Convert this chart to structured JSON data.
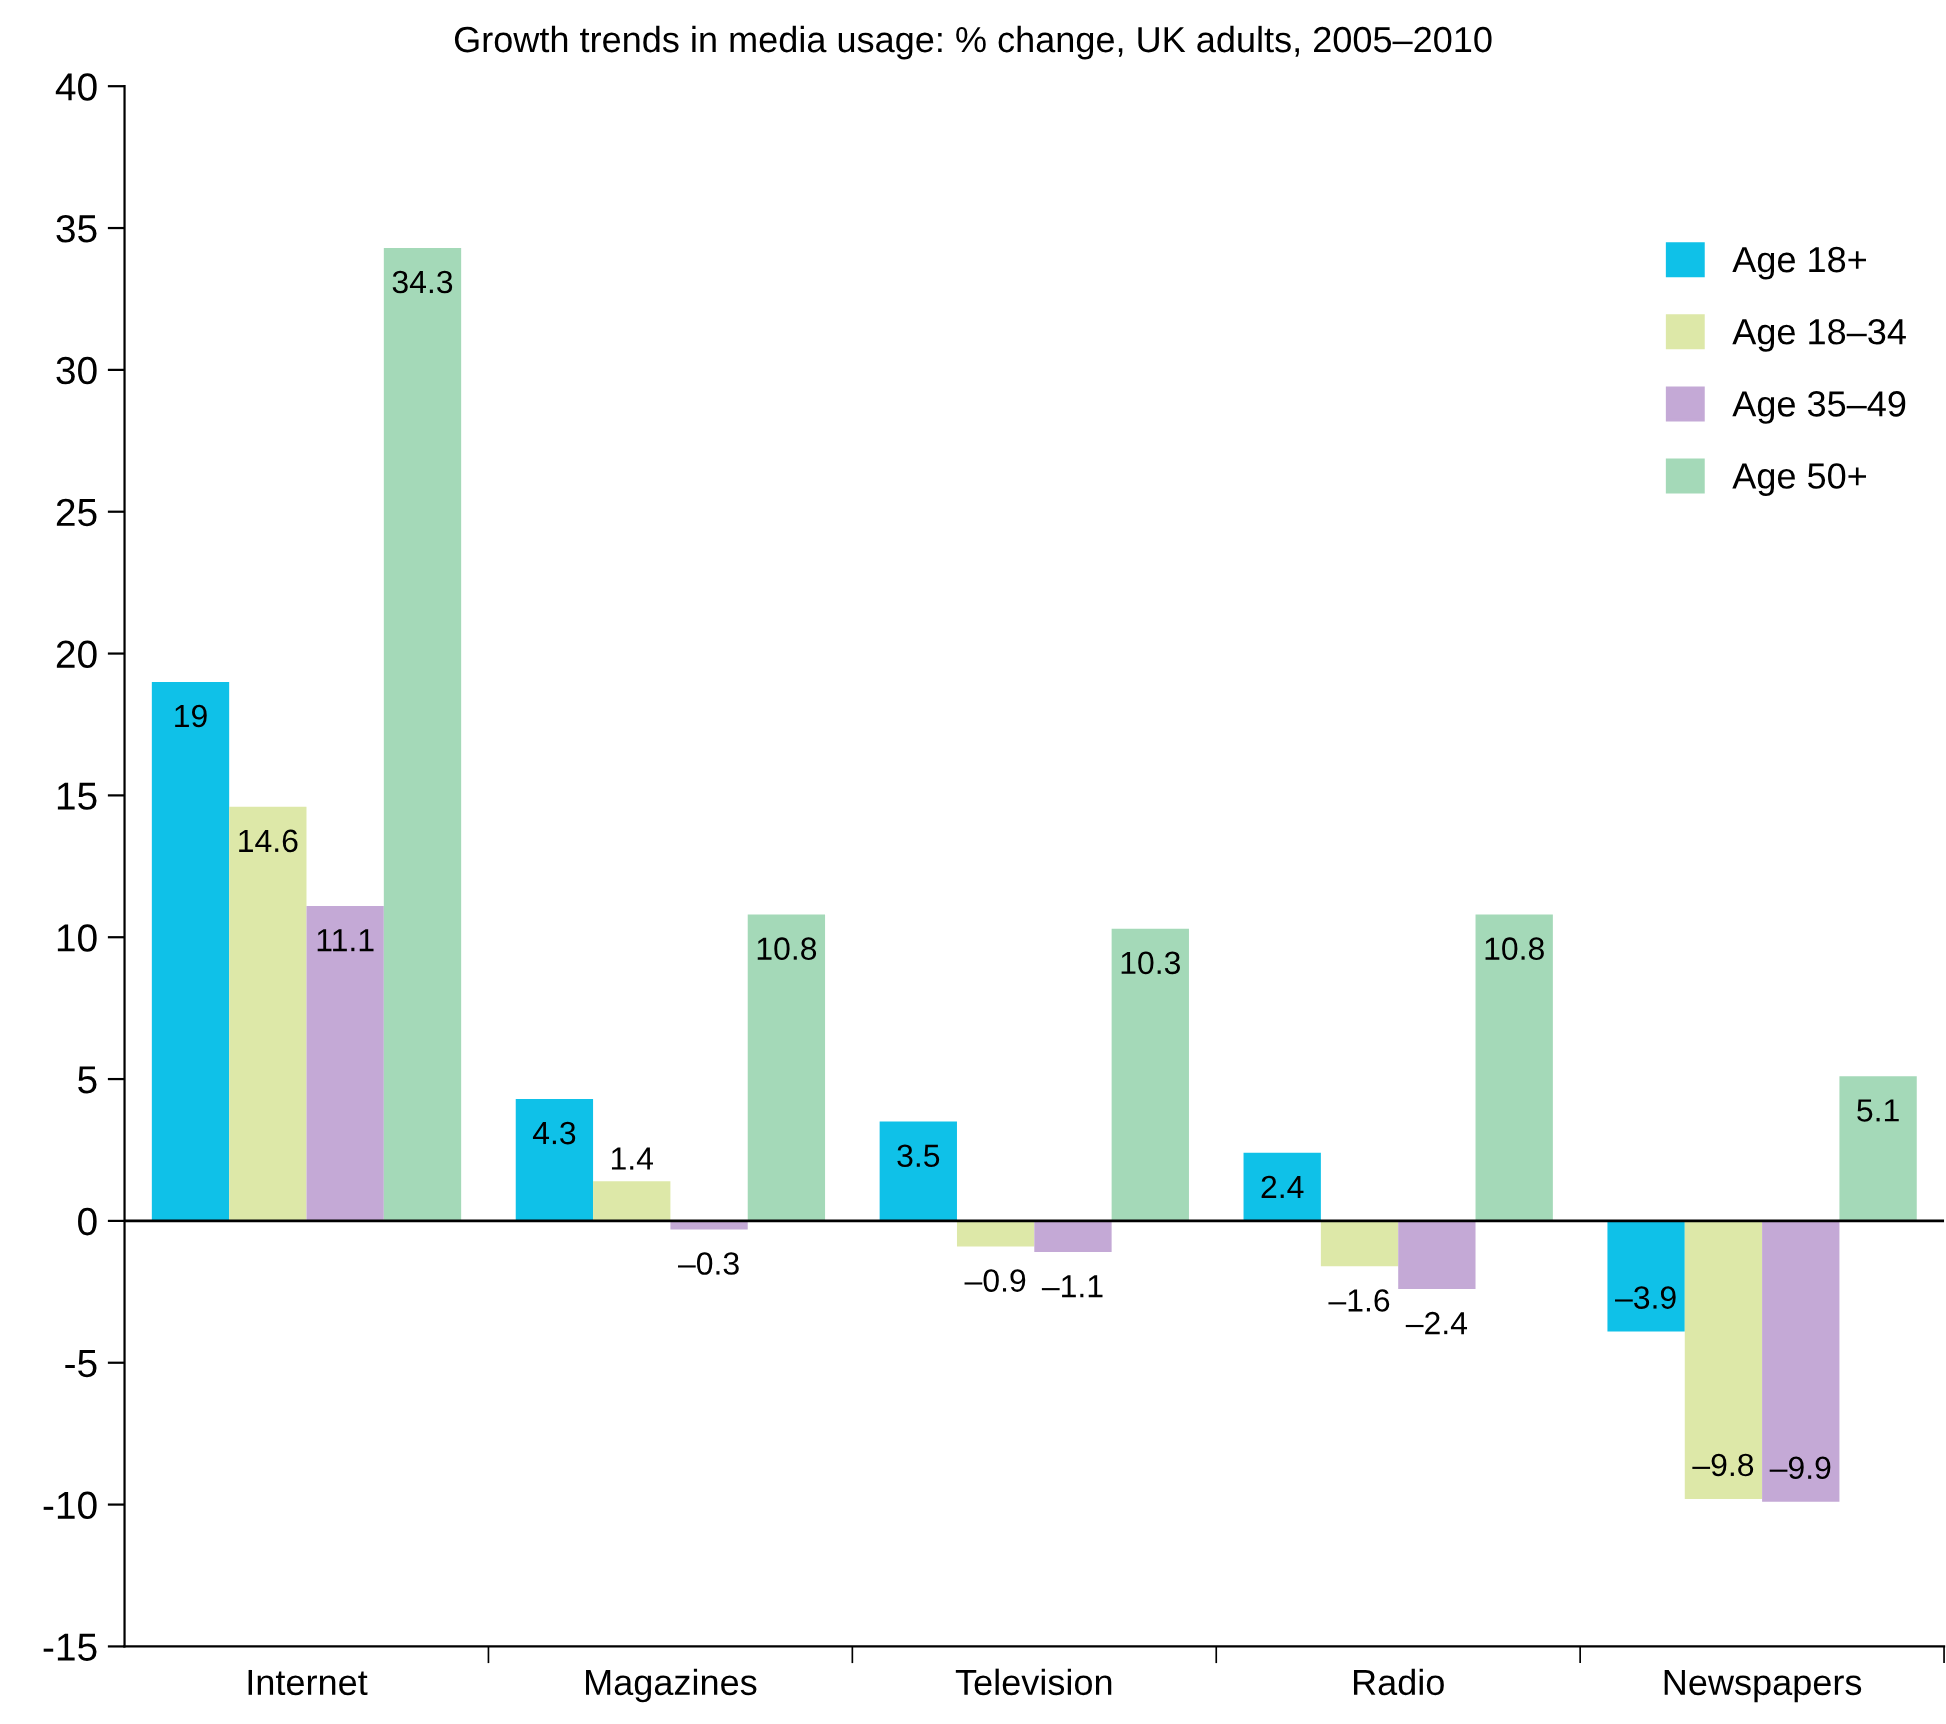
{
  "chart_data": {
    "type": "bar",
    "title": "Growth trends in media usage: % change, UK adults, 2005–2010",
    "categories": [
      "Internet",
      "Magazines",
      "Television",
      "Radio",
      "Newspapers"
    ],
    "series": [
      {
        "name": "Age 18+",
        "color": "#0fc1e8",
        "values": [
          19,
          4.3,
          3.5,
          2.4,
          -3.9
        ],
        "value_labels": [
          "19",
          "4.3",
          "3.5",
          "2.4",
          "–3.9"
        ]
      },
      {
        "name": "Age 18–34",
        "color": "#dde8a8",
        "values": [
          14.6,
          1.4,
          -0.9,
          -1.6,
          -9.8
        ],
        "value_labels": [
          "14.6",
          "1.4",
          "–0.9",
          "–1.6",
          "–9.8"
        ]
      },
      {
        "name": "Age 35–49",
        "color": "#c4a9d6",
        "values": [
          11.1,
          -0.3,
          -1.1,
          -2.4,
          -9.9
        ],
        "value_labels": [
          "11.1",
          "–0.3",
          "–1.1",
          "–2.4",
          "–9.9"
        ]
      },
      {
        "name": "Age 50+",
        "color": "#a4d9b8",
        "values": [
          34.3,
          10.8,
          10.3,
          10.8,
          5.1
        ],
        "value_labels": [
          "34.3",
          "10.8",
          "10.3",
          "10.8",
          "5.1"
        ]
      }
    ],
    "ylim": [
      -15,
      40
    ],
    "yticks": [
      -15,
      -10,
      -5,
      0,
      5,
      10,
      15,
      20,
      25,
      30,
      35,
      40
    ],
    "ref_lines": [
      {
        "axis": "y",
        "value": 0,
        "color": "#000000"
      }
    ],
    "grid": false,
    "legend": "top right"
  }
}
